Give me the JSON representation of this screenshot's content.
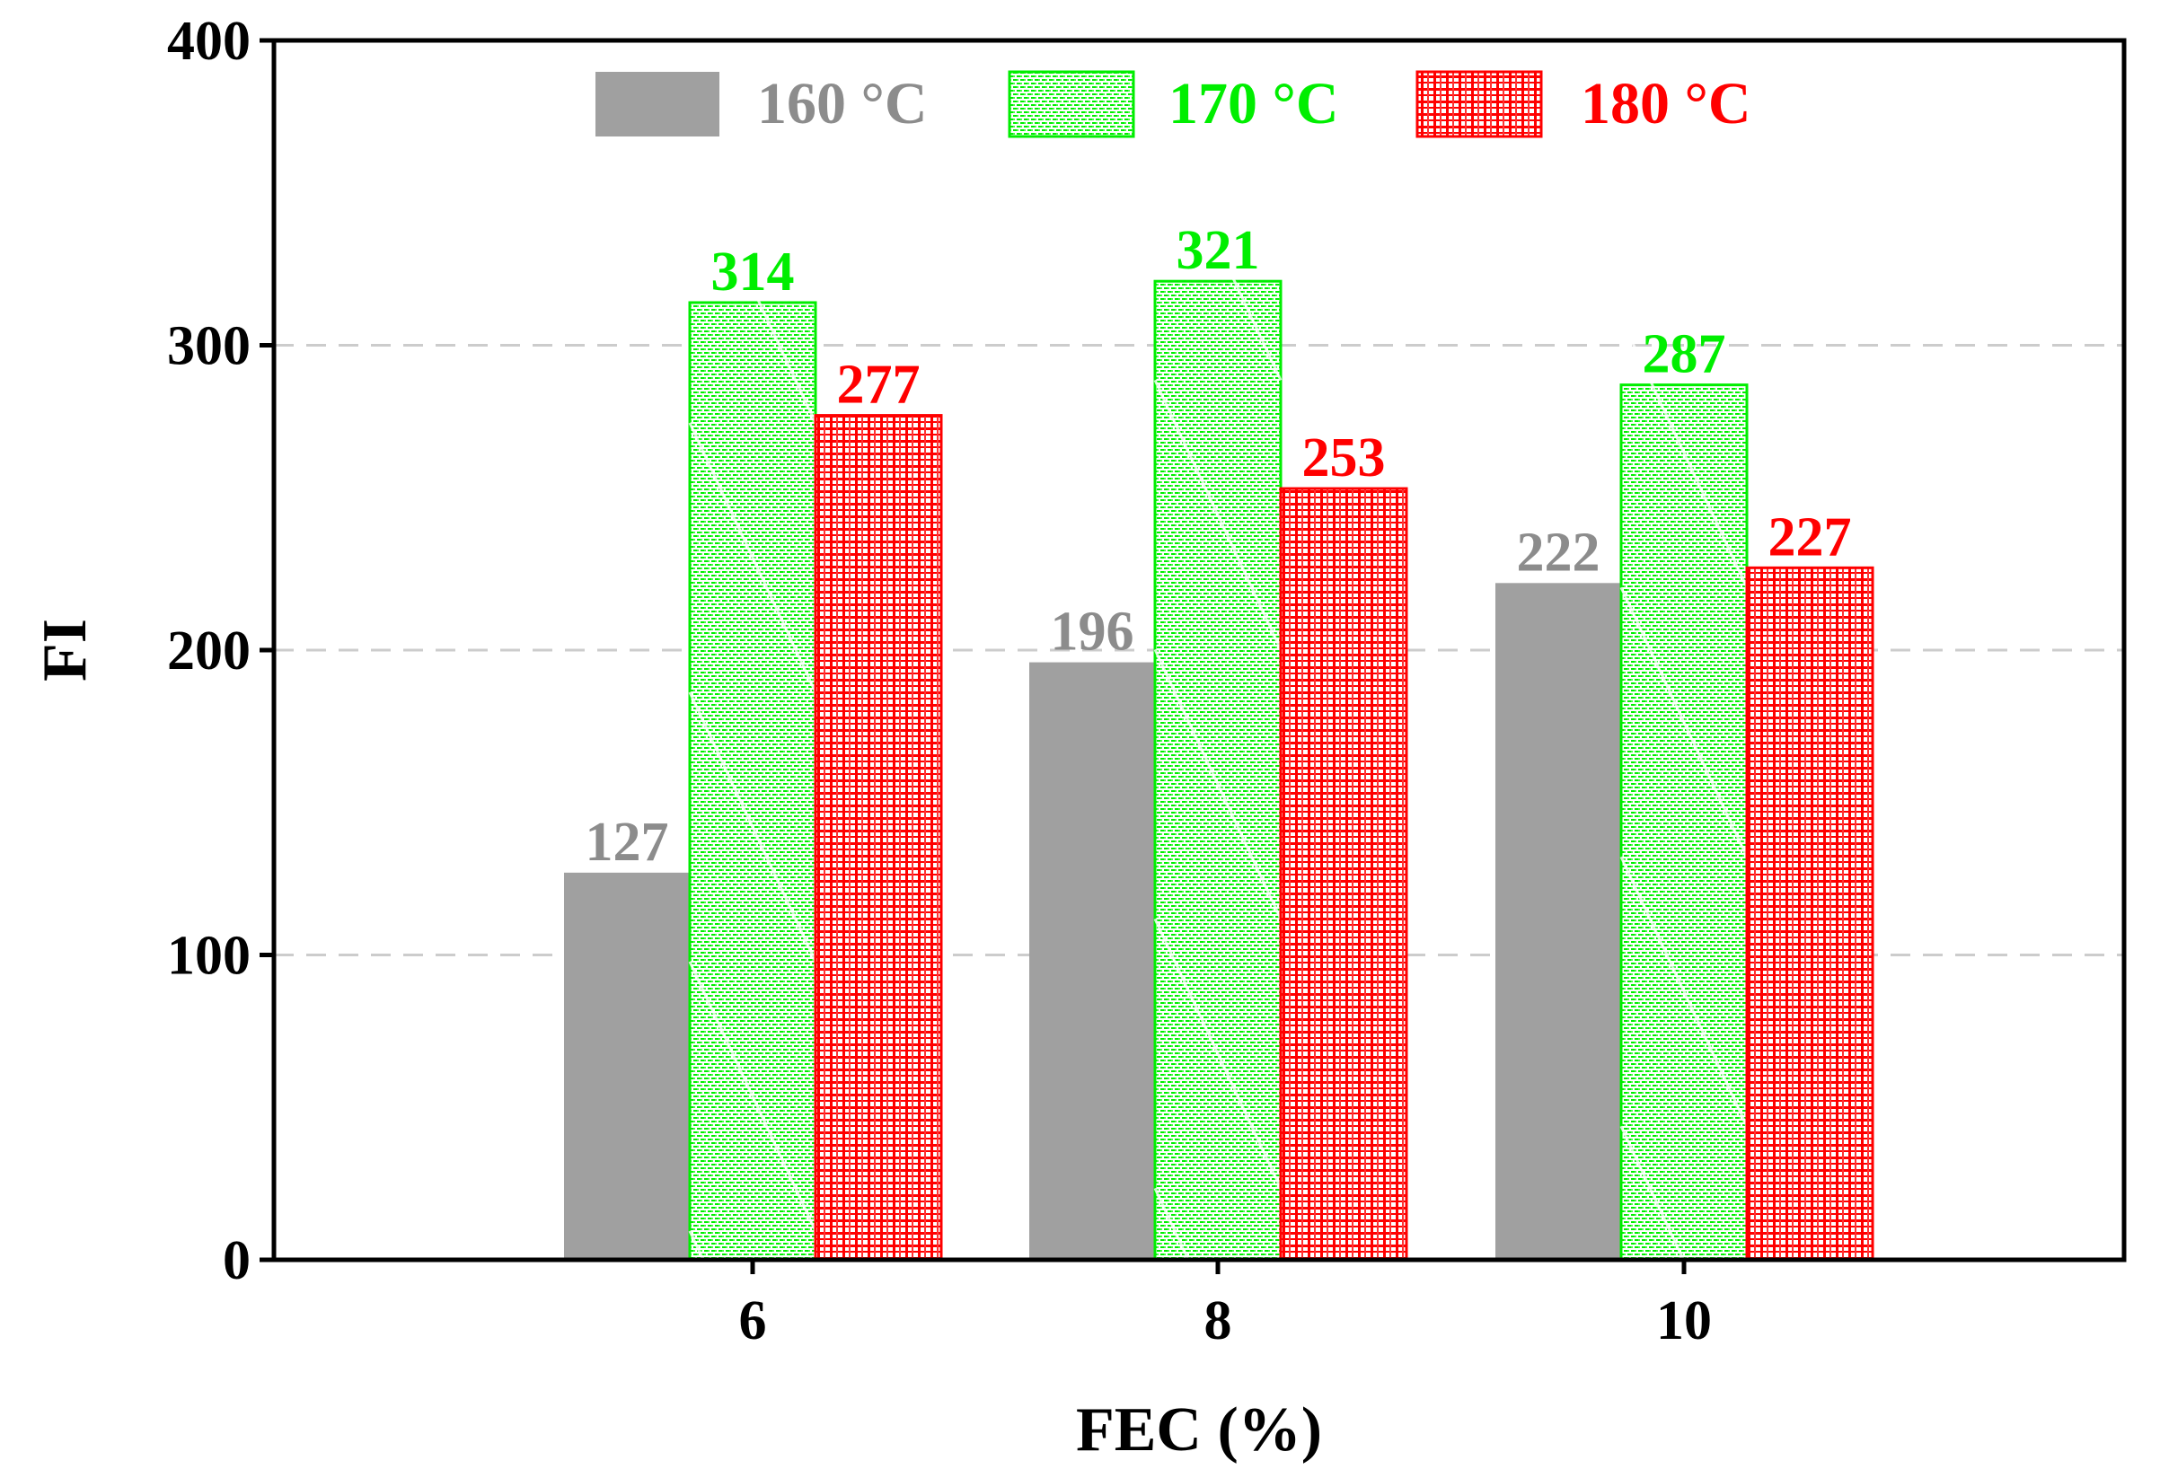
{
  "chart_data": {
    "type": "bar",
    "title": "",
    "xlabel": "FEC (%)",
    "ylabel": "FI",
    "categories": [
      "6",
      "8",
      "10"
    ],
    "ylim": [
      0,
      400
    ],
    "yticks": [
      "0",
      "100",
      "200",
      "300",
      "400"
    ],
    "grid": "horizontal dashed",
    "legend_position": "top",
    "series": [
      {
        "name": "160 °C",
        "values": [
          127,
          196,
          222
        ],
        "labels": [
          "127",
          "196",
          "222"
        ],
        "color": "#999999",
        "pattern": "solid"
      },
      {
        "name": "170 °C",
        "values": [
          314,
          321,
          287
        ],
        "labels": [
          "314",
          "321",
          "287"
        ],
        "color": "#00ee00",
        "pattern": "dense-dots-crosshatch"
      },
      {
        "name": "180 °C",
        "values": [
          277,
          253,
          227
        ],
        "labels": [
          "277",
          "253",
          "227"
        ],
        "color": "#ff0000",
        "pattern": "grid"
      }
    ]
  }
}
